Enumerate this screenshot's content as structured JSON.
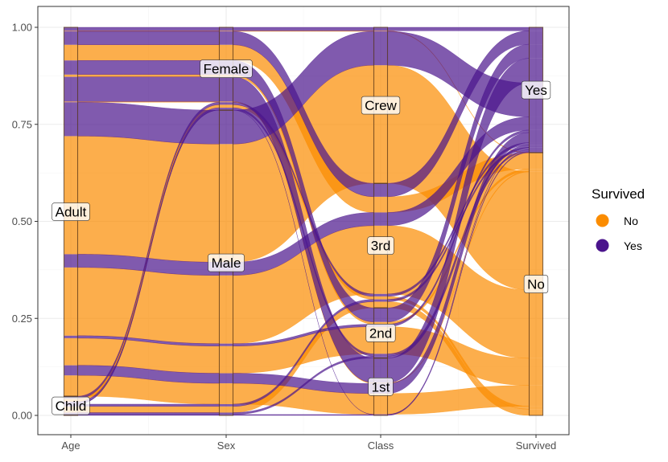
{
  "chart_data": {
    "type": "alluvial",
    "axes": [
      "Age",
      "Sex",
      "Class",
      "Survived"
    ],
    "ylim": [
      0,
      1
    ],
    "y_ticks": [
      "0.00",
      "0.25",
      "0.50",
      "0.75",
      "1.00"
    ],
    "y_tick_values": [
      0,
      0.25,
      0.5,
      0.75,
      1
    ],
    "strata": {
      "Age": [
        "Child",
        "Adult"
      ],
      "Sex": [
        "Male",
        "Female"
      ],
      "Class": [
        "1st",
        "2nd",
        "3rd",
        "Crew"
      ],
      "Survived": [
        "No",
        "Yes"
      ]
    },
    "legend": {
      "title": "Survived",
      "entries": [
        {
          "label": "No",
          "color": "#FB8C00"
        },
        {
          "label": "Yes",
          "color": "#4A148C"
        }
      ]
    },
    "grid": true,
    "legend_position": "right",
    "flows": [
      {
        "Age": "Child",
        "Sex": "Male",
        "Class": "3rd",
        "Survived": "No",
        "value": 35
      },
      {
        "Age": "Child",
        "Sex": "Female",
        "Class": "3rd",
        "Survived": "No",
        "value": 17
      },
      {
        "Age": "Adult",
        "Sex": "Male",
        "Class": "1st",
        "Survived": "No",
        "value": 118
      },
      {
        "Age": "Adult",
        "Sex": "Male",
        "Class": "2nd",
        "Survived": "No",
        "value": 154
      },
      {
        "Age": "Adult",
        "Sex": "Male",
        "Class": "3rd",
        "Survived": "No",
        "value": 387
      },
      {
        "Age": "Adult",
        "Sex": "Male",
        "Class": "Crew",
        "Survived": "No",
        "value": 670
      },
      {
        "Age": "Adult",
        "Sex": "Female",
        "Class": "1st",
        "Survived": "No",
        "value": 4
      },
      {
        "Age": "Adult",
        "Sex": "Female",
        "Class": "2nd",
        "Survived": "No",
        "value": 13
      },
      {
        "Age": "Adult",
        "Sex": "Female",
        "Class": "3rd",
        "Survived": "No",
        "value": 89
      },
      {
        "Age": "Adult",
        "Sex": "Female",
        "Class": "Crew",
        "Survived": "No",
        "value": 3
      },
      {
        "Age": "Child",
        "Sex": "Male",
        "Class": "1st",
        "Survived": "Yes",
        "value": 5
      },
      {
        "Age": "Child",
        "Sex": "Male",
        "Class": "2nd",
        "Survived": "Yes",
        "value": 11
      },
      {
        "Age": "Child",
        "Sex": "Male",
        "Class": "3rd",
        "Survived": "Yes",
        "value": 13
      },
      {
        "Age": "Child",
        "Sex": "Female",
        "Class": "1st",
        "Survived": "Yes",
        "value": 1
      },
      {
        "Age": "Child",
        "Sex": "Female",
        "Class": "2nd",
        "Survived": "Yes",
        "value": 13
      },
      {
        "Age": "Child",
        "Sex": "Female",
        "Class": "3rd",
        "Survived": "Yes",
        "value": 14
      },
      {
        "Age": "Adult",
        "Sex": "Male",
        "Class": "1st",
        "Survived": "Yes",
        "value": 57
      },
      {
        "Age": "Adult",
        "Sex": "Male",
        "Class": "2nd",
        "Survived": "Yes",
        "value": 14
      },
      {
        "Age": "Adult",
        "Sex": "Male",
        "Class": "3rd",
        "Survived": "Yes",
        "value": 75
      },
      {
        "Age": "Adult",
        "Sex": "Male",
        "Class": "Crew",
        "Survived": "Yes",
        "value": 192
      },
      {
        "Age": "Adult",
        "Sex": "Female",
        "Class": "1st",
        "Survived": "Yes",
        "value": 140
      },
      {
        "Age": "Adult",
        "Sex": "Female",
        "Class": "2nd",
        "Survived": "Yes",
        "value": 80
      },
      {
        "Age": "Adult",
        "Sex": "Female",
        "Class": "3rd",
        "Survived": "Yes",
        "value": 76
      },
      {
        "Age": "Adult",
        "Sex": "Female",
        "Class": "Crew",
        "Survived": "Yes",
        "value": 20
      }
    ]
  }
}
